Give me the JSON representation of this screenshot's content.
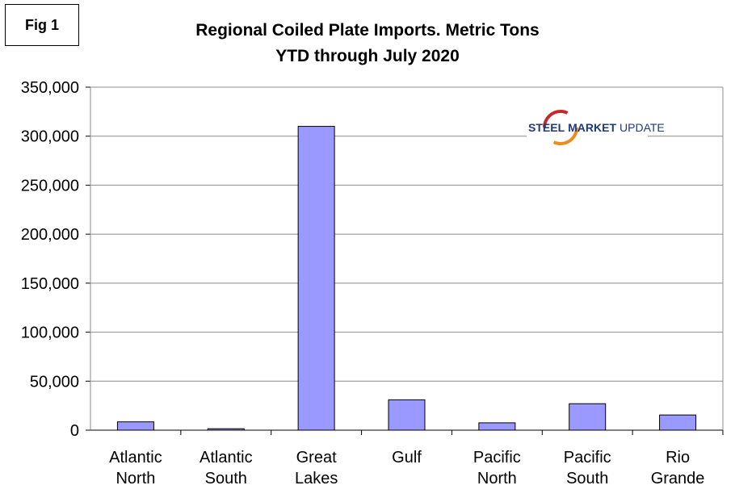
{
  "figure_label": "Fig 1",
  "chart_data": {
    "type": "bar",
    "title": "Regional Coiled Plate Imports. Metric Tons",
    "subtitle": "YTD through July 2020",
    "categories": [
      [
        "Atlantic",
        "North"
      ],
      [
        "Atlantic",
        "South"
      ],
      [
        "Great",
        "Lakes"
      ],
      [
        "Gulf"
      ],
      [
        "Pacific",
        "North"
      ],
      [
        "Pacific",
        "South"
      ],
      [
        "Rio",
        "Grande"
      ]
    ],
    "values": [
      8500,
      1500,
      310000,
      31000,
      7500,
      27000,
      15500
    ],
    "ylim": [
      0,
      350000
    ],
    "yticks": [
      0,
      50000,
      100000,
      150000,
      200000,
      250000,
      300000,
      350000
    ],
    "ytick_labels": [
      "0",
      "50,000",
      "100,000",
      "150,000",
      "200,000",
      "250,000",
      "300,000",
      "350,000"
    ],
    "grid": true,
    "bar_color": "#9999ff",
    "legend": "none"
  },
  "logo": {
    "word1": "STEEL",
    "word2": "MARKET",
    "word3": "UPDATE",
    "color_navy": "#1f3a7a",
    "color_orange": "#f08a1c",
    "color_red": "#c8282d"
  }
}
